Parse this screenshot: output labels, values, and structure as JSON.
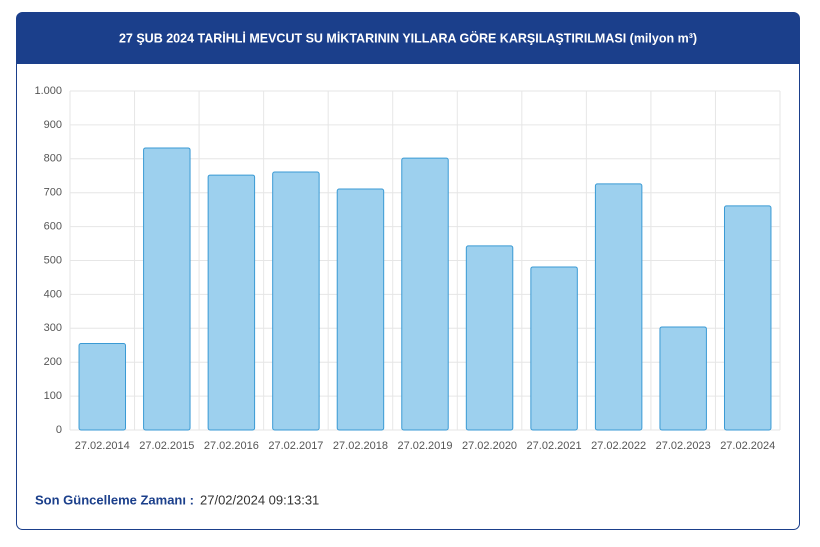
{
  "chart_data": {
    "type": "bar",
    "title": "27 ŞUB 2024 TARİHLİ MEVCUT SU MİKTARININ YILLARA GÖRE KARŞILAŞTIRILMASI (milyon m³)",
    "categories": [
      "27.02.2014",
      "27.02.2015",
      "27.02.2016",
      "27.02.2017",
      "27.02.2018",
      "27.02.2019",
      "27.02.2020",
      "27.02.2021",
      "27.02.2022",
      "27.02.2023",
      "27.02.2024"
    ],
    "values": [
      255,
      832,
      752,
      761,
      711,
      802,
      543,
      481,
      726,
      304,
      661
    ],
    "color": "#9dd0ee",
    "border_color": "#3a9ad4",
    "ylim": [
      0,
      1000
    ],
    "yticks": [
      0,
      100,
      200,
      300,
      400,
      500,
      600,
      700,
      800,
      900,
      {
        "value": 1000,
        "label": "1.000"
      }
    ],
    "grid": true
  },
  "footer": {
    "label": "Son Güncelleme Zamanı :",
    "value": "27/02/2024 09:13:31"
  }
}
